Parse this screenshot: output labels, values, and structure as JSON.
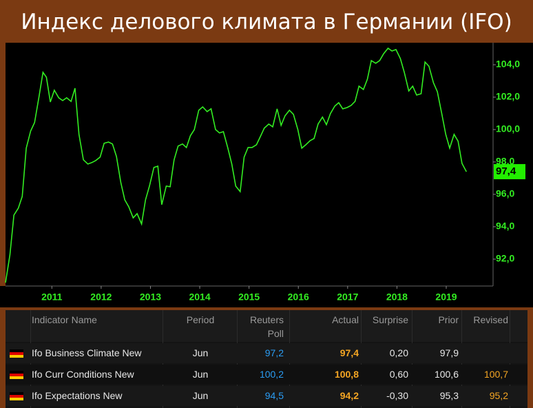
{
  "chart_data": {
    "type": "line",
    "title": "Индекс делового климата в Германии (IFO)",
    "color": "#33ee22",
    "x": [
      2010.06,
      2010.15,
      2010.23,
      2010.32,
      2010.4,
      2010.48,
      2010.57,
      2010.65,
      2010.74,
      2010.82,
      2010.89,
      2010.97,
      2011.05,
      2011.14,
      2011.22,
      2011.3,
      2011.39,
      2011.47,
      2011.55,
      2011.64,
      2011.73,
      2011.81,
      2011.89,
      2011.98,
      2012.06,
      2012.15,
      2012.23,
      2012.31,
      2012.4,
      2012.48,
      2012.56,
      2012.65,
      2012.73,
      2012.82,
      2012.9,
      2012.98,
      2013.07,
      2013.15,
      2013.23,
      2013.32,
      2013.4,
      2013.48,
      2013.56,
      2013.65,
      2013.73,
      2013.81,
      2013.89,
      2013.98,
      2014.06,
      2014.15,
      2014.23,
      2014.32,
      2014.4,
      2014.48,
      2014.57,
      2014.65,
      2014.73,
      2014.82,
      2014.9,
      2014.98,
      2015.06,
      2015.15,
      2015.23,
      2015.31,
      2015.4,
      2015.48,
      2015.57,
      2015.65,
      2015.73,
      2015.82,
      2015.9,
      2015.99,
      2016.07,
      2016.15,
      2016.24,
      2016.32,
      2016.4,
      2016.49,
      2016.57,
      2016.65,
      2016.74,
      2016.82,
      2016.9,
      2016.99,
      2017.07,
      2017.15,
      2017.23,
      2017.32,
      2017.4,
      2017.48,
      2017.57,
      2017.65,
      2017.73,
      2017.82,
      2017.9,
      2017.98,
      2018.07,
      2018.15,
      2018.24,
      2018.32,
      2018.4,
      2018.49,
      2018.57,
      2018.65,
      2018.74,
      2018.82,
      2018.91,
      2018.99,
      2019.07,
      2019.16,
      2019.24,
      2019.32,
      2019.41
    ],
    "values": [
      90.55,
      92.26,
      94.72,
      95.15,
      95.87,
      98.85,
      99.91,
      100.43,
      102.04,
      103.53,
      103.23,
      101.7,
      102.43,
      101.96,
      101.79,
      101.96,
      101.74,
      102.55,
      99.7,
      98.13,
      97.87,
      97.96,
      98.09,
      98.3,
      99.15,
      99.23,
      99.11,
      98.34,
      96.72,
      95.66,
      95.23,
      94.55,
      94.81,
      94.17,
      95.66,
      96.51,
      97.66,
      97.74,
      95.36,
      96.51,
      96.47,
      98.13,
      98.98,
      99.11,
      98.89,
      99.62,
      100.0,
      101.19,
      101.4,
      101.11,
      101.28,
      100.0,
      99.79,
      99.87,
      98.85,
      97.87,
      96.51,
      96.17,
      98.3,
      98.89,
      98.89,
      99.06,
      99.57,
      100.09,
      100.34,
      100.17,
      101.28,
      100.26,
      100.85,
      101.19,
      100.94,
      100.0,
      98.85,
      99.06,
      99.32,
      99.45,
      100.34,
      100.77,
      100.3,
      100.98,
      101.45,
      101.66,
      101.28,
      101.36,
      101.49,
      101.74,
      102.68,
      102.47,
      103.11,
      104.26,
      104.09,
      104.26,
      104.68,
      105.02,
      104.85,
      104.94,
      104.38,
      103.53,
      102.38,
      102.68,
      102.13,
      102.21,
      104.17,
      103.91,
      102.89,
      102.34,
      100.98,
      99.7,
      98.85,
      99.7,
      99.28,
      97.91,
      97.4
    ],
    "current": {
      "value": 97.4,
      "label": "97,4"
    },
    "xlim": [
      2010.06,
      2019.95
    ],
    "xticks": [
      2011,
      2012,
      2013,
      2014,
      2015,
      2016,
      2017,
      2018,
      2019
    ],
    "ylim": [
      90.34,
      105.36
    ],
    "yticks": [
      {
        "value": 92,
        "label": "92,0"
      },
      {
        "value": 94,
        "label": "94,0"
      },
      {
        "value": 96,
        "label": "96,0"
      },
      {
        "value": 98,
        "label": "98,0"
      },
      {
        "value": 100,
        "label": "100,0"
      },
      {
        "value": 102,
        "label": "102,0"
      },
      {
        "value": 104,
        "label": "104,0"
      }
    ]
  },
  "table": {
    "header": [
      "Indicator Name",
      "Period",
      "Reuters\nPoll",
      "Actual",
      "Surprise",
      "Prior",
      "Revised"
    ],
    "rows": [
      [
        "Ifo Business Climate New",
        "Jun",
        "97,2",
        "97,4",
        "0,20",
        "97,9",
        null
      ],
      [
        "Ifo Curr Conditions New",
        "Jun",
        "100,2",
        "100,8",
        "0,60",
        "100,6",
        "100,7"
      ],
      [
        "Ifo Expectations New",
        "Jun",
        "94,5",
        "94,2",
        "-0,30",
        "95,3",
        "95,2"
      ]
    ]
  }
}
